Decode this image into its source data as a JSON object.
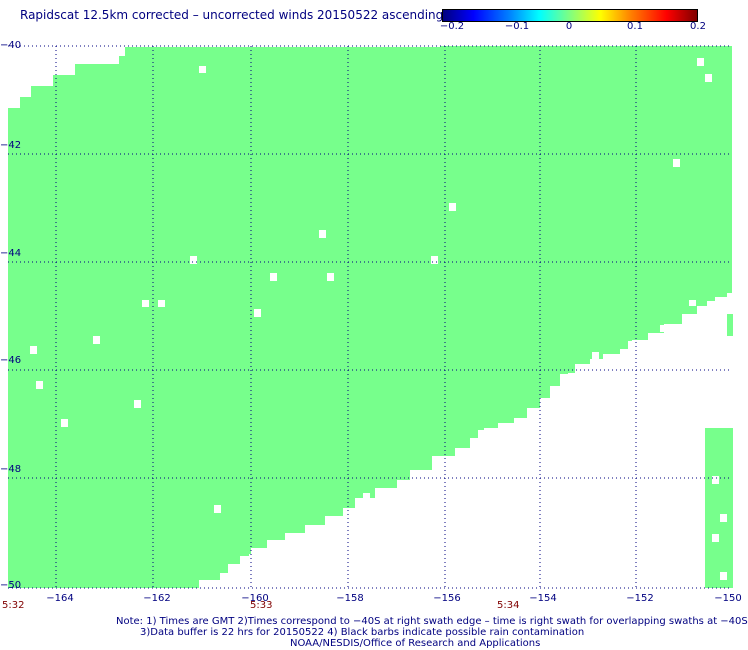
{
  "title": "Rapidscat 12.5km corrected – uncorrected winds 20150522 ascending",
  "colorbar": {
    "labels": [
      "−0.2",
      "−0.1",
      "0",
      "0.1",
      "0.2"
    ],
    "label_values": [
      -0.2,
      -0.1,
      0,
      0.1,
      0.2
    ]
  },
  "axes": {
    "lon_labels": [
      "−164",
      "−162",
      "−160",
      "−158",
      "−156",
      "−154",
      "−152",
      "−150"
    ],
    "lon_values": [
      -164,
      -162,
      -160,
      -158,
      -156,
      -154,
      -152,
      -150
    ],
    "lat_labels": [
      "−40",
      "−42",
      "−44",
      "−46",
      "−48",
      "−50"
    ],
    "lat_values": [
      -40,
      -42,
      -44,
      -46,
      -48,
      -50
    ],
    "lon_range": [
      -165,
      -150
    ],
    "lat_range": [
      -50,
      -40
    ],
    "grid": "dotted"
  },
  "times": [
    "5:32",
    "5:33",
    "5:34"
  ],
  "notes": {
    "line1": "Note: 1) Times are GMT 2)Times correspond to −40S at right swath edge – time is right swath for overlapping swaths at −40S",
    "line2": "3)Data buffer is 22 hrs for 20150522 4) Black barbs indicate possible rain contamination",
    "line3": "NOAA/NESDIS/Office of Research and Applications"
  },
  "colors": {
    "fill": "#77ff8c",
    "axis": "#000080",
    "grid": "#000080",
    "time": "#800000"
  }
}
